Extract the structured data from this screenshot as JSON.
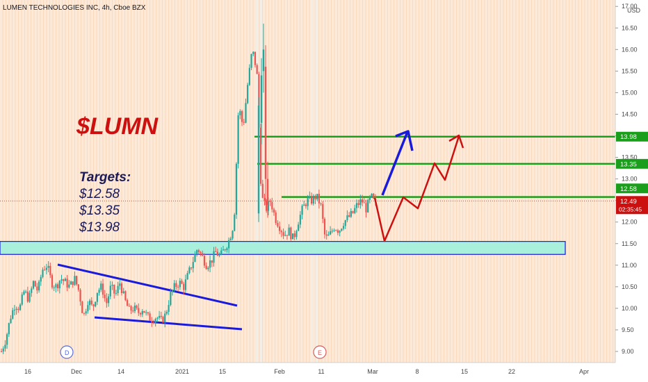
{
  "header": {
    "symbol_title": "LUMEN TECHNOLOGIES INC, 4h, Cboe BZX",
    "currency": "USD"
  },
  "annotations": {
    "ticker": "$LUMN",
    "targets_heading": "Targets:",
    "targets": [
      "$12.58",
      "$13.35",
      "$13.98"
    ]
  },
  "price_labels": {
    "last_price": "12.49",
    "countdown": "02:35:45",
    "level_1": "12.58",
    "level_2": "13.35",
    "level_3": "13.98"
  },
  "event_markers": {
    "dividend": "D",
    "earnings": "E"
  },
  "colors": {
    "background": "#fde9d7",
    "up_candle": "#26a69a",
    "down_candle": "#ef5350",
    "level_line": "#1b9e1b",
    "support_zone": "#a8f0dc",
    "zone_border": "#1a1adb",
    "blue_arrow": "#1a1adb",
    "red_arrow": "#cc1010",
    "ticker_text": "#cc1010",
    "targets_text": "#1a1a5a",
    "price_tag": "#cc1010",
    "level_tag": "#1b9e1b"
  },
  "chart_data": {
    "type": "candlestick",
    "title": "LUMEN TECHNOLOGIES INC, 4h, Cboe BZX",
    "ylim": [
      8.8,
      17.0
    ],
    "y_ticks": [
      "9.00",
      "9.50",
      "10.00",
      "10.50",
      "11.00",
      "11.50",
      "12.00",
      "12.50",
      "13.00",
      "13.50",
      "14.00",
      "14.50",
      "15.00",
      "15.50",
      "16.00",
      "16.50",
      "17.00"
    ],
    "x_ticks": [
      "16",
      "Dec",
      "14",
      "2021",
      "15",
      "Feb",
      "11",
      "Mar",
      "8",
      "15",
      "22",
      "Apr"
    ],
    "horizontal_levels": [
      12.58,
      13.35,
      13.98
    ],
    "support_zone": [
      11.25,
      11.55
    ],
    "last_price": 12.49,
    "path": [
      9.0,
      9.3,
      9.8,
      10.1,
      10.0,
      10.4,
      10.2,
      10.6,
      10.4,
      10.9,
      11.0,
      10.6,
      10.5,
      10.7,
      10.6,
      10.5,
      10.7,
      10.4,
      9.8,
      10.2,
      10.0,
      10.4,
      10.5,
      10.1,
      10.5,
      10.3,
      10.6,
      10.2,
      9.95,
      10.0,
      9.9,
      10.0,
      9.8,
      9.75,
      9.8,
      9.7,
      9.85,
      10.3,
      10.5,
      10.6,
      10.5,
      10.8,
      11.1,
      11.4,
      11.2,
      11.0,
      11.1,
      11.3,
      11.2,
      11.4,
      11.6,
      12.0,
      14.7,
      14.2,
      15.2,
      16.0,
      15.5,
      12.6,
      12.3,
      12.5,
      12.1,
      11.9,
      11.7,
      11.8,
      11.6,
      12.0,
      12.3,
      12.5,
      12.5,
      12.6,
      12.4,
      11.6,
      11.7,
      11.9,
      11.8,
      12.0,
      12.1,
      12.2,
      12.4,
      12.5,
      12.3,
      12.6,
      12.4
    ]
  }
}
